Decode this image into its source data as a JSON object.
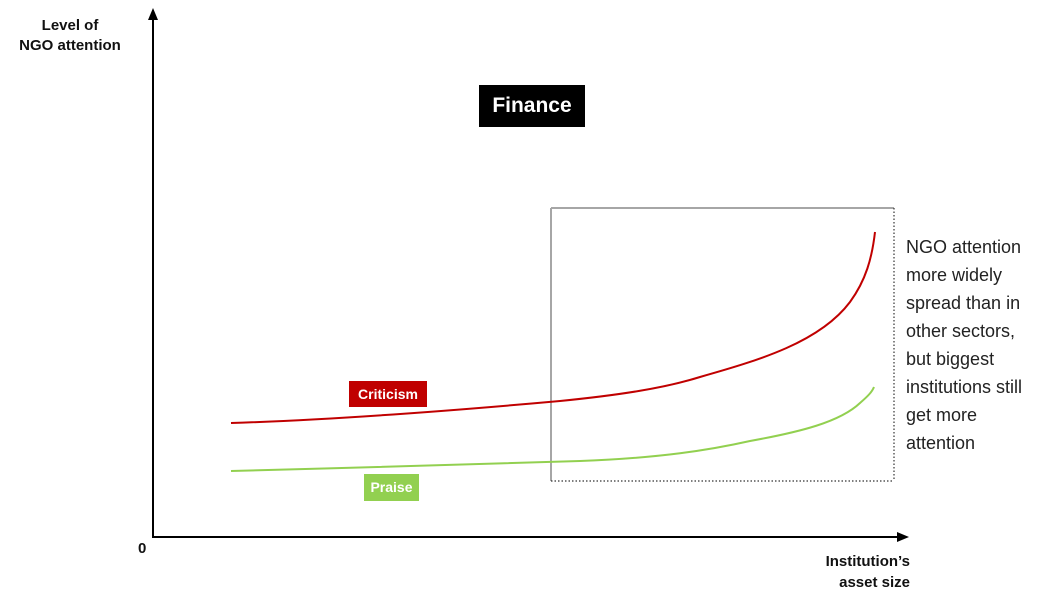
{
  "axes": {
    "y_label_lines": [
      "Level of",
      "NGO attention"
    ],
    "x_label_lines": [
      "Institution’s",
      "asset size"
    ],
    "origin_label": "0"
  },
  "title": "Finance",
  "series": [
    {
      "name": "Criticism",
      "color": "#c00000"
    },
    {
      "name": "Praise",
      "color": "#92d050"
    }
  ],
  "annotation_lines": [
    "NGO attention",
    "more widely",
    "spread than in",
    "other sectors,",
    "but biggest",
    "institutions still",
    "get more",
    "attention"
  ]
}
